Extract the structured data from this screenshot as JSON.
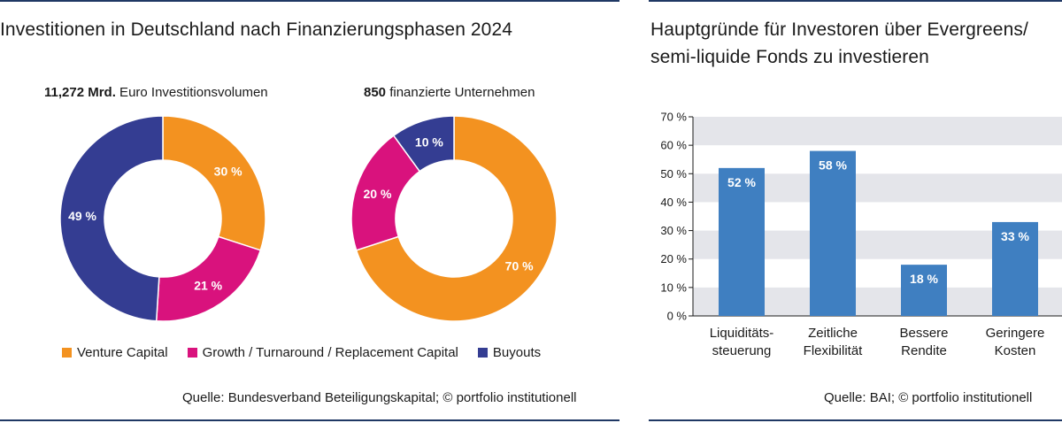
{
  "left": {
    "title": "Investitionen in Deutschland nach Finanzierungsphasen 2024",
    "donut1_sub_bold": "11,272 Mrd.",
    "donut1_sub_rest": " Euro Investitionsvolumen",
    "donut2_sub_bold": "850",
    "donut2_sub_rest": " finanzierte Unternehmen",
    "legend": [
      {
        "label": "Venture Capital",
        "color": "#f39220"
      },
      {
        "label": "Growth / Turnaround / Replacement Capital",
        "color": "#d9127d"
      },
      {
        "label": "Buyouts",
        "color": "#343d92"
      }
    ],
    "source": "Quelle: Bundesverband Beteiligungskapital; © portfolio institutionell"
  },
  "right": {
    "title_line1": "Hauptgründe für Investoren über Evergreens/",
    "title_line2": "semi-liquide Fonds zu investieren",
    "source": "Quelle: BAI; © portfolio institutionell"
  },
  "chart_data": [
    {
      "type": "pie",
      "categories": [
        "Venture Capital",
        "Growth / Turnaround / Replacement Capital",
        "Buyouts"
      ],
      "values": [
        30,
        21,
        49
      ],
      "value_labels": [
        "30 %",
        "21 %",
        "49 %"
      ],
      "colors": [
        "#f39220",
        "#d9127d",
        "#343d92"
      ],
      "subtitle": "11,272 Mrd. Euro Investitionsvolumen"
    },
    {
      "type": "pie",
      "categories": [
        "Venture Capital",
        "Growth / Turnaround / Replacement Capital",
        "Buyouts"
      ],
      "values": [
        70,
        20,
        10
      ],
      "value_labels": [
        "70 %",
        "20 %",
        "10 %"
      ],
      "colors": [
        "#f39220",
        "#d9127d",
        "#343d92"
      ],
      "subtitle": "850 finanzierte Unternehmen"
    },
    {
      "type": "bar",
      "title": "Hauptgründe für Investoren über Evergreens/ semi-liquide Fonds zu investieren",
      "categories": [
        [
          "Liquiditäts-",
          "steuerung"
        ],
        [
          "Zeitliche",
          "Flexibilität"
        ],
        [
          "Bessere",
          "Rendite"
        ],
        [
          "Geringere",
          "Kosten"
        ]
      ],
      "values": [
        52,
        58,
        18,
        33
      ],
      "value_labels": [
        "52 %",
        "58 %",
        "18 %",
        "33 %"
      ],
      "ylim": [
        0,
        70
      ],
      "yticks": [
        "0 %",
        "10 %",
        "20 %",
        "30 %",
        "40 %",
        "50 %",
        "60 %",
        "70 %"
      ],
      "bar_color": "#3f7fc1",
      "band_color": "#e4e5ea",
      "grid": true
    }
  ]
}
